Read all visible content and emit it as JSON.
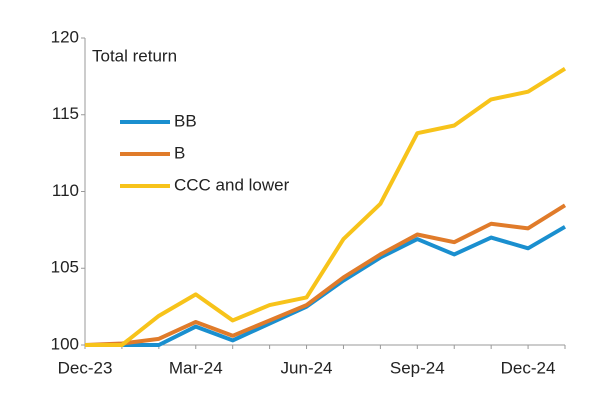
{
  "chart_data": {
    "type": "line",
    "annotation": "Total return",
    "categories": [
      "Dec-23",
      null,
      null,
      "Mar-24",
      null,
      null,
      "Jun-24",
      null,
      null,
      "Sep-24",
      null,
      null,
      "Dec-24",
      null
    ],
    "series": [
      {
        "name": "BB",
        "color": "#1a8fcf",
        "values": [
          100,
          100,
          100,
          101.2,
          100.3,
          101.4,
          102.5,
          104.2,
          105.7,
          106.9,
          105.9,
          107,
          106.3,
          107.7
        ]
      },
      {
        "name": "B",
        "color": "#e07b2a",
        "values": [
          100,
          100.1,
          100.4,
          101.5,
          100.6,
          101.6,
          102.6,
          104.4,
          105.9,
          107.2,
          106.7,
          107.9,
          107.6,
          109.1
        ]
      },
      {
        "name": "CCC and lower",
        "color": "#f7c31a",
        "values": [
          100,
          100,
          101.9,
          103.3,
          101.6,
          102.6,
          103.1,
          106.9,
          109.2,
          113.8,
          114.3,
          116,
          116.5,
          118
        ]
      }
    ],
    "ylim": [
      100,
      120
    ],
    "yticks": [
      100,
      105,
      110,
      115,
      120
    ],
    "grid": false,
    "legend": "upper left"
  }
}
